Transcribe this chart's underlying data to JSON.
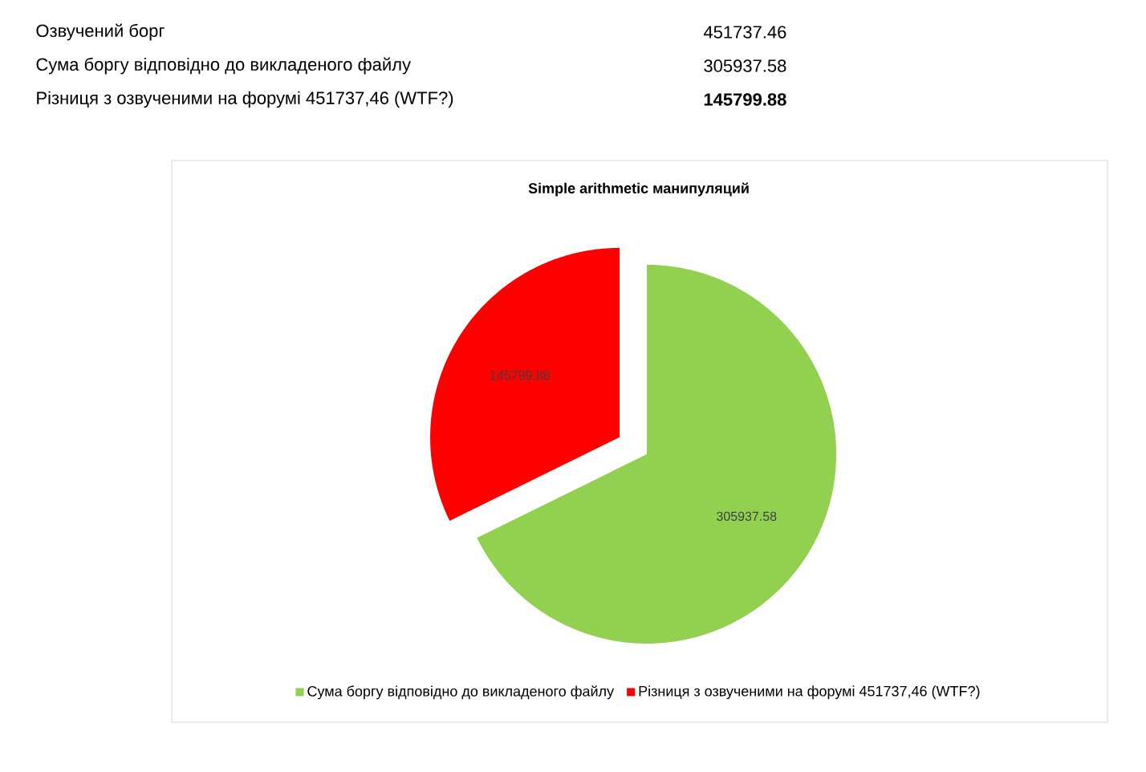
{
  "chart_data": {
    "type": "pie",
    "title": "Simple arithmetic манипуляций",
    "categories": [
      "Сума боргу відповідно до викладеного файлу",
      "Різниця з озвученими на форумі 451737,46 (WTF?)"
    ],
    "values": [
      305937.58,
      145799.88
    ],
    "colors": [
      "#92d050",
      "#ff0000"
    ],
    "data_labels": true,
    "legend": "bottom",
    "annotations": [
      "Озвучений борг",
      "451737.46",
      "Сума боргу відповідно до викладеного файлу",
      "305937.58",
      "Різниця з озвученими на форумі 451737,46 (WTF?)",
      "145799.88"
    ]
  }
}
